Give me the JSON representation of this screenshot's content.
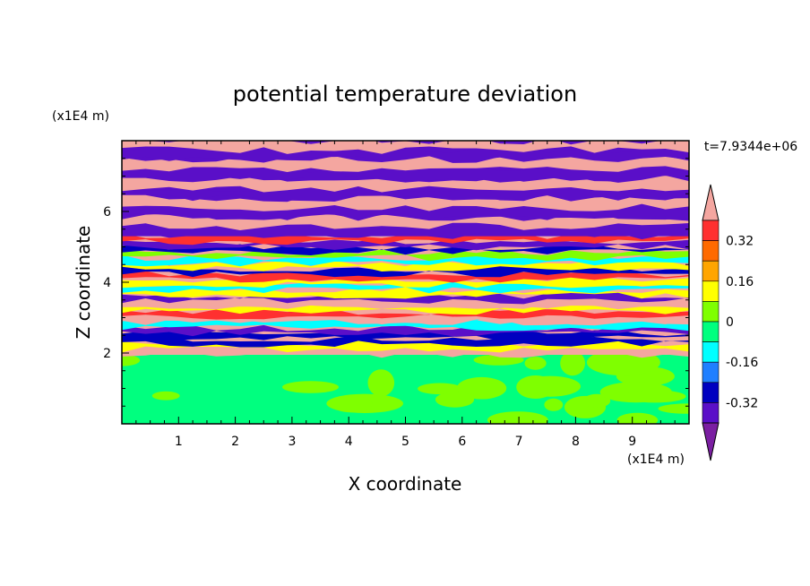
{
  "chart_data": {
    "type": "heatmap",
    "title": "potential temperature deviation",
    "xlabel": "X coordinate",
    "ylabel": "Z coordinate",
    "x_unit": "(x1E4 m)",
    "y_unit": "(x1E4 m)",
    "time_label": "t=7.9344e+06",
    "xlim": [
      0,
      10
    ],
    "ylim": [
      0,
      8
    ],
    "xticks": [
      "1",
      "2",
      "3",
      "4",
      "5",
      "6",
      "7",
      "8",
      "9"
    ],
    "yticks": [
      "2",
      "4",
      "6"
    ],
    "colorbar": {
      "levels": [
        -0.48,
        -0.4,
        -0.32,
        -0.24,
        -0.16,
        -0.08,
        0,
        0.08,
        0.16,
        0.24,
        0.32,
        0.4,
        0.48
      ],
      "labels": [
        "0.32",
        "0.16",
        "0",
        "-0.16",
        "-0.32"
      ],
      "label_values": [
        0.32,
        0.16,
        0,
        -0.16,
        -0.32
      ],
      "colors_top_to_bottom": [
        "#f4a6a0",
        "#ff3030",
        "#ff6a00",
        "#ffa500",
        "#ffff00",
        "#7fff00",
        "#00ff7f",
        "#00ffff",
        "#1f7fff",
        "#0000c0",
        "#5a0fc8",
        "#7b1fa2"
      ]
    },
    "bands": [
      {
        "z": [
          0,
          1.95
        ],
        "pattern": "green mottled",
        "colors": [
          "#00ff7f",
          "#7fff00"
        ]
      },
      {
        "z": [
          1.95,
          5.3
        ],
        "pattern": "multicolor thin layers",
        "colors": [
          "#f4a6a0",
          "#ff3030",
          "#ffff00",
          "#7fff00",
          "#00ffff",
          "#0000c0",
          "#5a0fc8"
        ]
      },
      {
        "z": [
          5.3,
          8.0
        ],
        "pattern": "alternating purple and pink layers",
        "colors": [
          "#5a0fc8",
          "#f4a6a0"
        ]
      }
    ]
  }
}
